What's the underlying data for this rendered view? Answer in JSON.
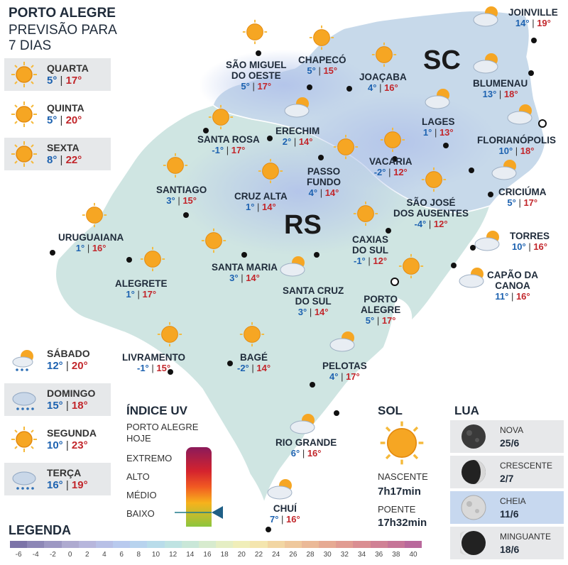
{
  "header": {
    "title": "PORTO ALEGRE",
    "subtitle": "PREVISÃO PARA 7 DIAS"
  },
  "forecast": [
    {
      "day": "QUARTA",
      "min": "5°",
      "max": "17°",
      "icon": "sun-icon"
    },
    {
      "day": "QUINTA",
      "min": "5°",
      "max": "20°",
      "icon": "sun-icon"
    },
    {
      "day": "SEXTA",
      "min": "8°",
      "max": "22°",
      "icon": "sun-icon"
    },
    {
      "day": "SÁBADO",
      "min": "12°",
      "max": "20°",
      "icon": "sun-cloud-rain-icon"
    },
    {
      "day": "DOMINGO",
      "min": "15°",
      "max": "18°",
      "icon": "cloud-rain-icon"
    },
    {
      "day": "SEGUNDA",
      "min": "10°",
      "max": "23°",
      "icon": "sun-icon"
    },
    {
      "day": "TERÇA",
      "min": "16°",
      "max": "19°",
      "icon": "cloud-rain-icon"
    }
  ],
  "map": {
    "states": {
      "rs": "RS",
      "sc": "SC"
    },
    "cities": [
      {
        "id": "sao-miguel-do-oeste",
        "name_l1": "SÃO MIGUEL",
        "name_l2": "DO OESTE",
        "min": "5°",
        "max": "17°"
      },
      {
        "id": "chapeco",
        "name_l1": "CHAPECÓ",
        "name_l2": "",
        "min": "5°",
        "max": "15°"
      },
      {
        "id": "joacaba",
        "name_l1": "JOAÇABA",
        "name_l2": "",
        "min": "4°",
        "max": "16°"
      },
      {
        "id": "joinville",
        "name_l1": "JOINVILLE",
        "name_l2": "",
        "min": "14°",
        "max": "19°"
      },
      {
        "id": "blumenau",
        "name_l1": "BLUMENAU",
        "name_l2": "",
        "min": "13°",
        "max": "18°"
      },
      {
        "id": "lages",
        "name_l1": "LAGES",
        "name_l2": "",
        "min": "1°",
        "max": "13°"
      },
      {
        "id": "florianopolis",
        "name_l1": "FLORIANÓPOLIS",
        "name_l2": "",
        "min": "10°",
        "max": "18°"
      },
      {
        "id": "santa-rosa",
        "name_l1": "SANTA ROSA",
        "name_l2": "",
        "min": "-1°",
        "max": "17°"
      },
      {
        "id": "erechim",
        "name_l1": "ERECHIM",
        "name_l2": "",
        "min": "2°",
        "max": "14°"
      },
      {
        "id": "vacaria",
        "name_l1": "VACARIA",
        "name_l2": "",
        "min": "-2°",
        "max": "12°"
      },
      {
        "id": "passo-fundo",
        "name_l1": "PASSO",
        "name_l2": "FUNDO",
        "min": "4°",
        "max": "14°"
      },
      {
        "id": "santiago",
        "name_l1": "SANTIAGO",
        "name_l2": "",
        "min": "3°",
        "max": "15°"
      },
      {
        "id": "cruz-alta",
        "name_l1": "CRUZ ALTA",
        "name_l2": "",
        "min": "1°",
        "max": "14°"
      },
      {
        "id": "sao-jose-dos-ausentes",
        "name_l1": "SÃO JOSÉ",
        "name_l2": "DOS AUSENTES",
        "min": "-4°",
        "max": "12°"
      },
      {
        "id": "criciuma",
        "name_l1": "CRICIÚMA",
        "name_l2": "",
        "min": "5°",
        "max": "17°"
      },
      {
        "id": "uruguaiana",
        "name_l1": "URUGUAIANA",
        "name_l2": "",
        "min": "1°",
        "max": "16°"
      },
      {
        "id": "caxias-do-sul",
        "name_l1": "CAXIAS",
        "name_l2": "DO SUL",
        "min": "-1°",
        "max": "12°"
      },
      {
        "id": "torres",
        "name_l1": "TORRES",
        "name_l2": "",
        "min": "10°",
        "max": "16°"
      },
      {
        "id": "alegrete",
        "name_l1": "ALEGRETE",
        "name_l2": "",
        "min": "1°",
        "max": "17°"
      },
      {
        "id": "santa-maria",
        "name_l1": "SANTA MARIA",
        "name_l2": "",
        "min": "3°",
        "max": "14°"
      },
      {
        "id": "capao-da-canoa",
        "name_l1": "CAPÃO DA",
        "name_l2": "CANOA",
        "min": "11°",
        "max": "16°"
      },
      {
        "id": "santa-cruz-do-sul",
        "name_l1": "SANTA CRUZ",
        "name_l2": "DO SUL",
        "min": "3°",
        "max": "14°"
      },
      {
        "id": "porto-alegre",
        "name_l1": "PORTO",
        "name_l2": "ALEGRE",
        "min": "5°",
        "max": "17°"
      },
      {
        "id": "livramento",
        "name_l1": "LIVRAMENTO",
        "name_l2": "",
        "min": "-1°",
        "max": "15°"
      },
      {
        "id": "bage",
        "name_l1": "BAGÉ",
        "name_l2": "",
        "min": "-2°",
        "max": "14°"
      },
      {
        "id": "pelotas",
        "name_l1": "PELOTAS",
        "name_l2": "",
        "min": "4°",
        "max": "17°"
      },
      {
        "id": "rio-grande",
        "name_l1": "RIO GRANDE",
        "name_l2": "",
        "min": "6°",
        "max": "16°"
      },
      {
        "id": "chui",
        "name_l1": "CHUÍ",
        "name_l2": "",
        "min": "7°",
        "max": "16°"
      }
    ]
  },
  "uv": {
    "title": "ÍNDICE UV",
    "subtitle_l1": "PORTO ALEGRE",
    "subtitle_l2": "HOJE",
    "levels": [
      "EXTREMO",
      "ALTO",
      "MÉDIO",
      "BAIXO"
    ],
    "current": "BAIXO",
    "indicator_color": "#1f7a8c"
  },
  "sun": {
    "title": "SOL",
    "rise_label": "NASCENTE",
    "rise": "7h17min",
    "set_label": "POENTE",
    "set": "17h32min"
  },
  "moon": {
    "title": "LUA",
    "phases": [
      {
        "name": "NOVA",
        "date": "25/6",
        "icon": "new-moon-icon"
      },
      {
        "name": "CRESCENTE",
        "date": "2/7",
        "icon": "crescent-moon-icon"
      },
      {
        "name": "CHEIA",
        "date": "11/6",
        "icon": "full-moon-icon",
        "highlight": true
      },
      {
        "name": "MINGUANTE",
        "date": "18/6",
        "icon": "waning-moon-icon"
      }
    ]
  },
  "legend": {
    "title": "LEGENDA",
    "ticks": [
      "-6",
      "-4",
      "-2",
      "0",
      "2",
      "4",
      "6",
      "8",
      "10",
      "12",
      "14",
      "16",
      "18",
      "20",
      "22",
      "24",
      "26",
      "28",
      "30",
      "32",
      "34",
      "36",
      "38",
      "40"
    ],
    "colors": [
      "#7c74a8",
      "#8d87b6",
      "#9d98c3",
      "#aeaad0",
      "#b7b6dc",
      "#b8c0e6",
      "#b9caee",
      "#b8d3ee",
      "#b9dcea",
      "#bfe3e2",
      "#c9e7d8",
      "#d7ebce",
      "#e5eec4",
      "#f0eeb9",
      "#f4e5ae",
      "#f2d6a3",
      "#efc89c",
      "#ebb997",
      "#e6aa93",
      "#e19c92",
      "#da8e92",
      "#d08195",
      "#c67598",
      "#b9699c"
    ]
  }
}
